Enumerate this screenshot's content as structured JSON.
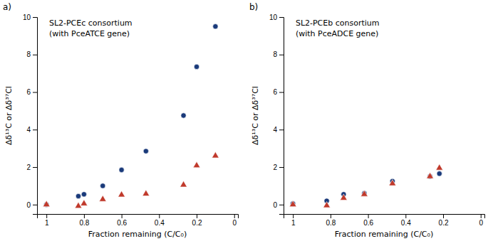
{
  "chart_data": [
    {
      "type": "scatter",
      "title": "SL2-PCEc consortium",
      "subtitle": "(with PceATCE gene)",
      "annotations": [
        "a)"
      ],
      "xlabel": "Fraction remaining (C/C₀)",
      "ylabel": "Δδ¹³C or Δδ³⁷Cl",
      "x": [
        1.0,
        0.83,
        0.8,
        0.7,
        0.6,
        0.47,
        0.27,
        0.2,
        0.1
      ],
      "series": [
        {
          "color": "#1a3a7a",
          "marker": "circle",
          "values": [
            0.0,
            0.45,
            0.55,
            1.0,
            1.85,
            2.85,
            4.75,
            7.35,
            9.5
          ],
          "errors": [
            0.05,
            0.05,
            0.05,
            0.08,
            0.08,
            0.1,
            0.12,
            0.1,
            0.12
          ]
        },
        {
          "color": "#c0392b",
          "marker": "triangle",
          "values": [
            0.0,
            -0.08,
            0.05,
            0.28,
            0.52,
            0.57,
            1.05,
            2.08,
            2.6
          ],
          "errors": [
            0.04,
            0.04,
            0.04,
            0.06,
            0.06,
            0.06,
            0.1,
            0.1,
            0.08
          ]
        }
      ],
      "xlim": [
        1.05,
        -0.02
      ],
      "ylim": [
        -0.5,
        10
      ],
      "xticks": [
        1.0,
        0.8,
        0.6,
        0.4,
        0.2,
        0.0
      ],
      "yticks": [
        0,
        2,
        4,
        6,
        8,
        10
      ],
      "grid": false
    },
    {
      "type": "scatter",
      "title": "SL2-PCEb consortium",
      "subtitle": "(with PceADCE gene)",
      "annotations": [
        "b)"
      ],
      "xlabel": "Fraction remaining (C/C₀)",
      "ylabel": "Δδ¹³C or Δδ³⁷Cl",
      "x": [
        1.0,
        0.82,
        0.73,
        0.62,
        0.47,
        0.27,
        0.22
      ],
      "series": [
        {
          "color": "#1a3a7a",
          "marker": "circle",
          "values": [
            0.05,
            0.2,
            0.55,
            0.6,
            1.25,
            1.5,
            1.65
          ],
          "errors": [
            0.04,
            0.06,
            0.06,
            0.06,
            0.08,
            0.08,
            0.08
          ]
        },
        {
          "color": "#c0392b",
          "marker": "triangle",
          "values": [
            0.0,
            -0.05,
            0.35,
            0.55,
            1.12,
            1.5,
            1.95
          ],
          "errors": [
            0.04,
            0.05,
            0.05,
            0.06,
            0.08,
            0.09,
            0.1
          ]
        }
      ],
      "xlim": [
        1.05,
        -0.02
      ],
      "ylim": [
        -0.5,
        10
      ],
      "xticks": [
        1.0,
        0.8,
        0.6,
        0.4,
        0.2,
        0.0
      ],
      "yticks": [
        0,
        2,
        4,
        6,
        8,
        10
      ],
      "grid": false
    }
  ]
}
